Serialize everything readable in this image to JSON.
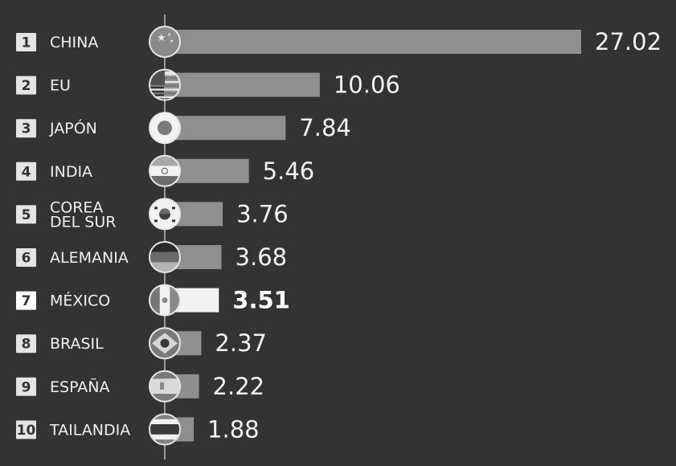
{
  "chart_data": {
    "type": "bar",
    "orientation": "horizontal",
    "categories": [
      "CHINA",
      "EU",
      "JAPÓN",
      "INDIA",
      "COREA DEL SUR",
      "ALEMANIA",
      "MÉXICO",
      "BRASIL",
      "ESPAÑA",
      "TAILANDIA"
    ],
    "ranks": [
      "1",
      "2",
      "3",
      "4",
      "5",
      "6",
      "7",
      "8",
      "9",
      "10"
    ],
    "values": [
      27.02,
      10.06,
      7.84,
      5.46,
      3.76,
      3.68,
      3.51,
      2.37,
      2.22,
      1.88
    ],
    "value_labels": [
      "27.02",
      "10.06",
      "7.84",
      "5.46",
      "3.76",
      "3.68",
      "3.51",
      "2.37",
      "2.22",
      "1.88"
    ],
    "highlighted": "MÉXICO",
    "flags": [
      "china-flag-icon",
      "usa-flag-icon",
      "japan-flag-icon",
      "india-flag-icon",
      "south-korea-flag-icon",
      "germany-flag-icon",
      "mexico-flag-icon",
      "brazil-flag-icon",
      "spain-flag-icon",
      "thailand-flag-icon"
    ],
    "title": "",
    "xlabel": "",
    "ylabel": "",
    "xlim": [
      0,
      27.02
    ],
    "grid": false,
    "legend": "none",
    "colors": {
      "background": "#333333",
      "bar": "#8f8f8f",
      "highlight_bar": "#f2f2f2",
      "text": "#f0f0f0"
    }
  }
}
